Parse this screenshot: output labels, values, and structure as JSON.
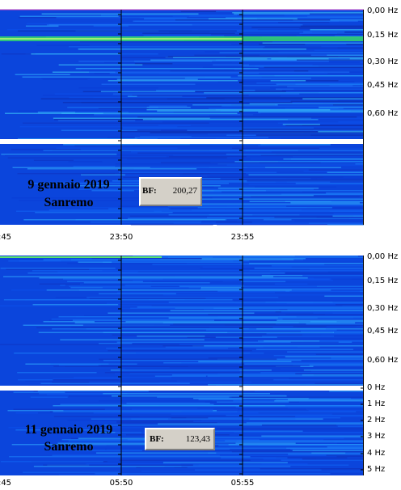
{
  "panels": [
    {
      "freq_labels": [
        "0,00 Hz",
        "0,15 Hz",
        "0,30 Hz",
        "0,45 Hz",
        "0,60 Hz"
      ],
      "time_labels": [
        ":45",
        "23:50",
        "23:55"
      ],
      "caption": [
        "9 gennaio 2019",
        "Sanremo"
      ],
      "bf_label": "BF:",
      "bf_value": "200,27"
    },
    {
      "freq_labels": [
        "0,00 Hz",
        "0,15 Hz",
        "0,30 Hz",
        "0,45 Hz",
        "0,60 Hz"
      ],
      "low_freq_labels": [
        "0 Hz",
        "1 Hz",
        "2 Hz",
        "3 Hz",
        "4 Hz",
        "5 Hz"
      ],
      "time_labels": [
        ":45",
        "05:50",
        "05:55"
      ],
      "caption": [
        "11 gennaio 2019",
        "Sanremo"
      ],
      "bf_label": "BF:",
      "bf_value": "123,43"
    }
  ]
}
